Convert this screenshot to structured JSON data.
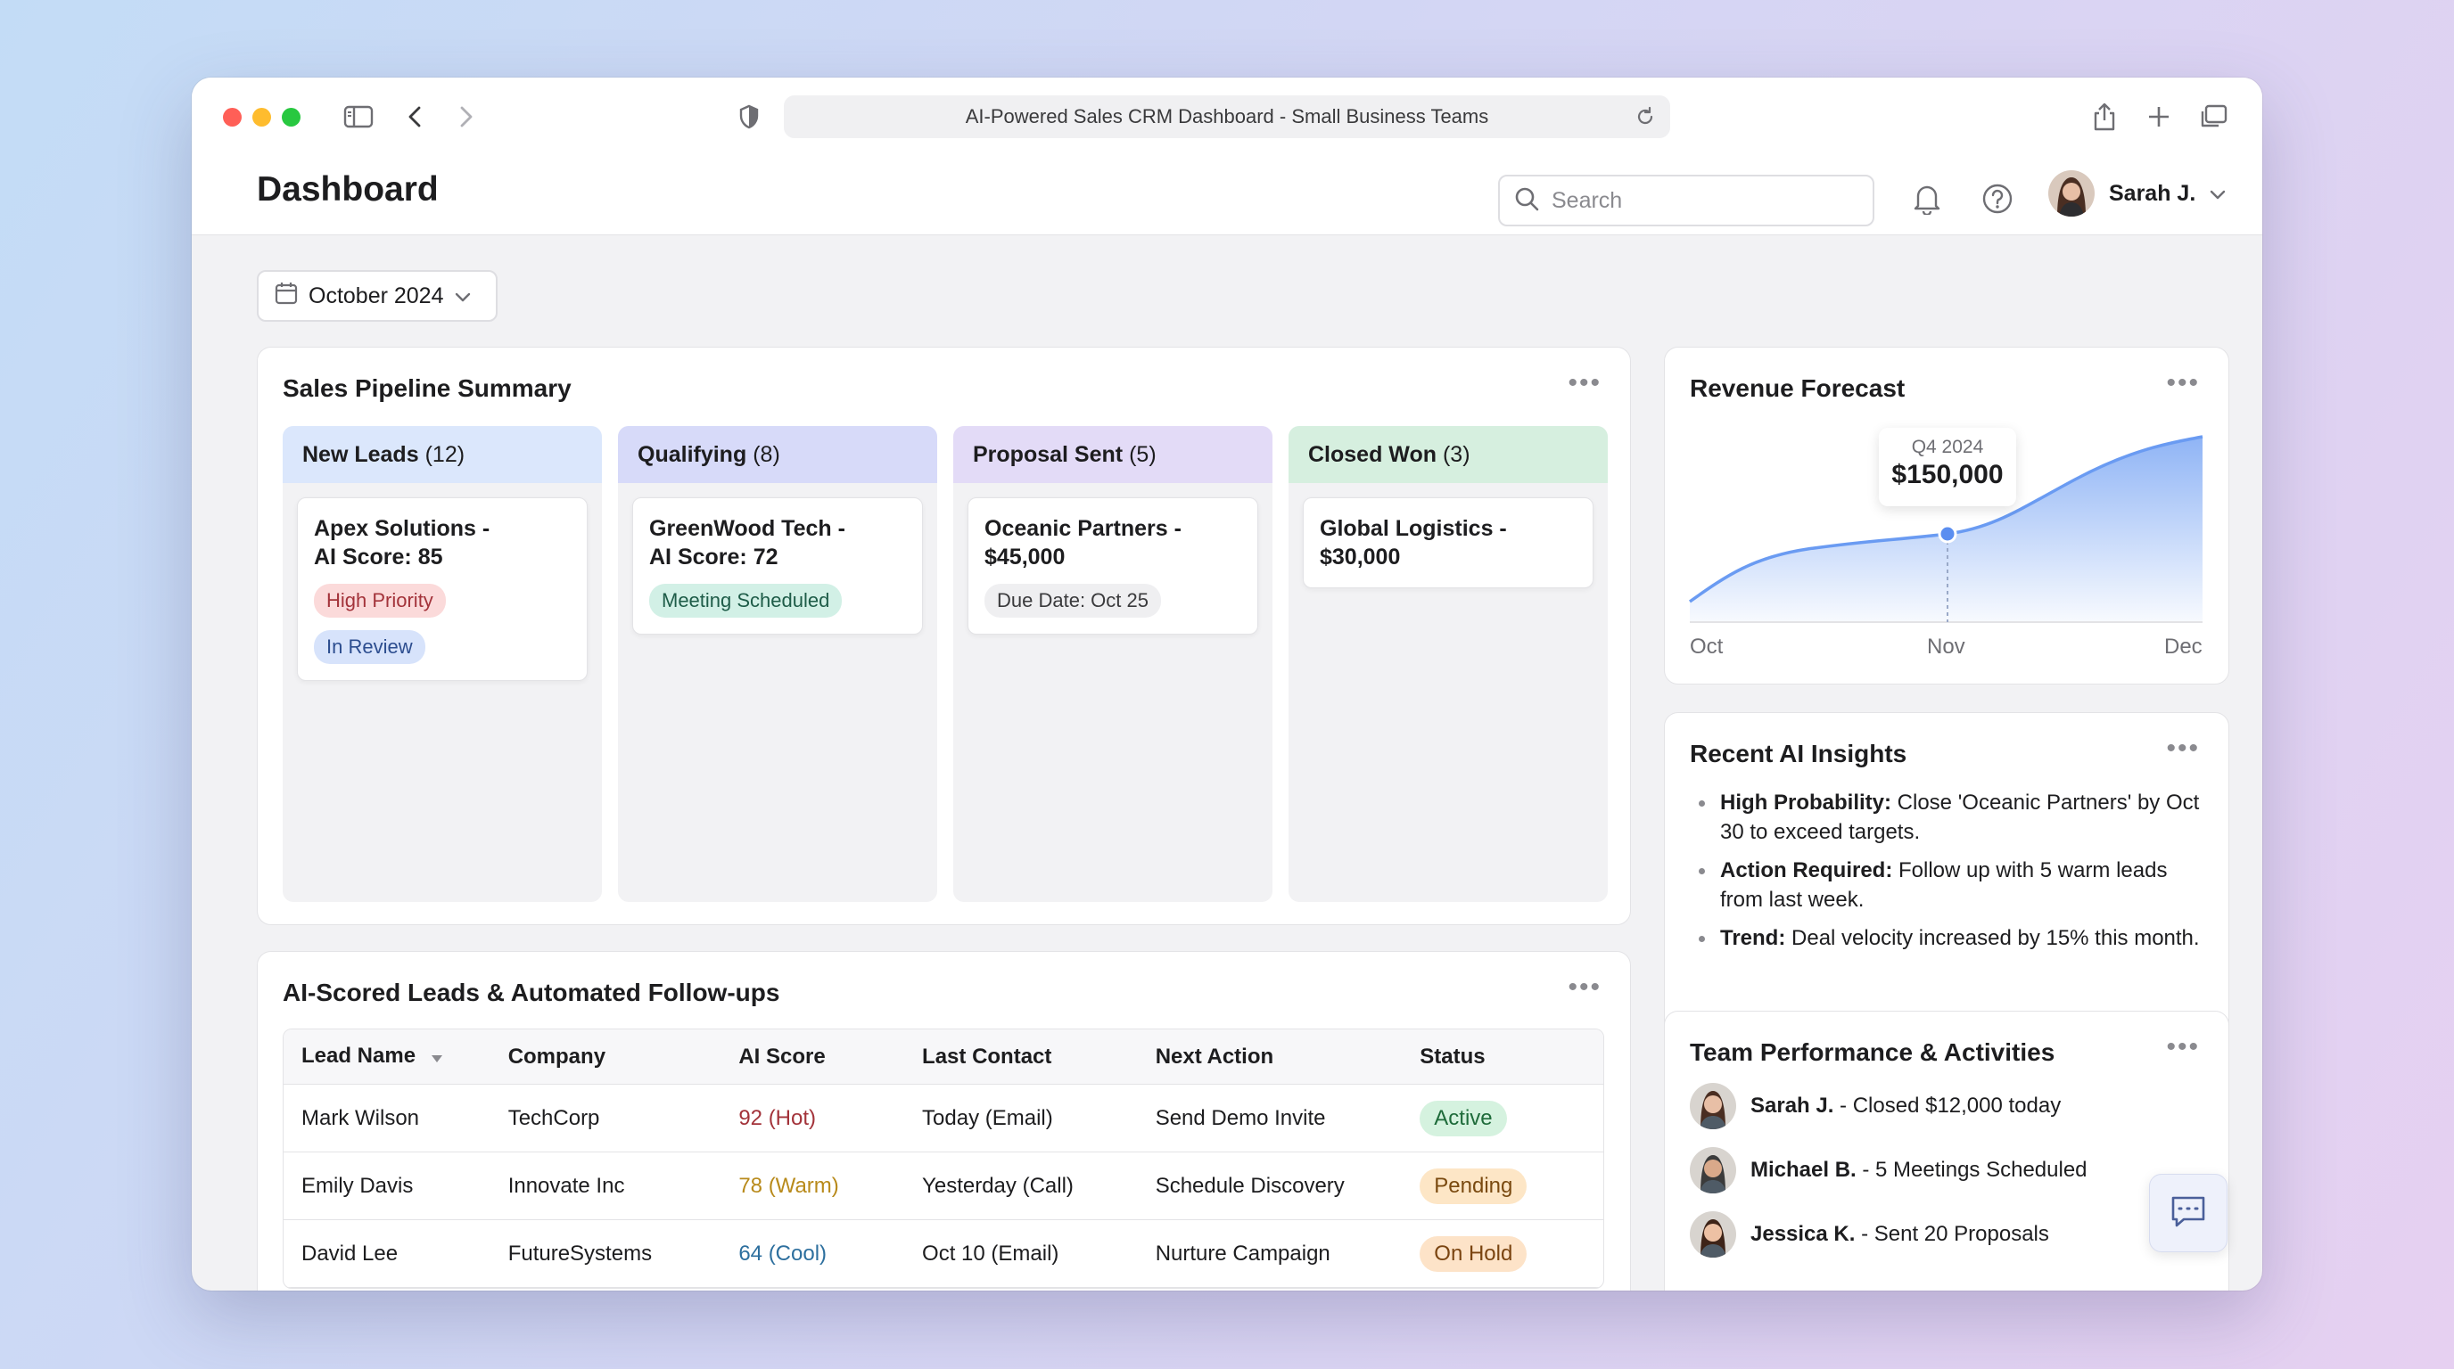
{
  "browser": {
    "url_title": "AI-Powered Sales CRM Dashboard - Small Business Teams"
  },
  "header": {
    "title": "Dashboard",
    "search_placeholder": "Search",
    "user_name": "Sarah J."
  },
  "filters": {
    "month": "October 2024"
  },
  "pipeline": {
    "title": "Sales Pipeline Summary",
    "columns": [
      {
        "name": "New Leads",
        "count": "(12)",
        "color": "#dbe7fc",
        "deal_line1": "Apex Solutions -",
        "deal_line2": "AI Score: 85",
        "tags": [
          "High Priority",
          "In Review"
        ]
      },
      {
        "name": "Qualifying",
        "count": "(8)",
        "color": "#d7daf9",
        "deal_line1": "GreenWood Tech -",
        "deal_line2": "AI Score: 72",
        "tags": [
          "Meeting Scheduled"
        ]
      },
      {
        "name": "Proposal Sent",
        "count": "(5)",
        "color": "#e3dbf7",
        "deal_line1": "Oceanic Partners -",
        "deal_line2": "$45,000",
        "tags": [
          "Due Date: Oct 25"
        ]
      },
      {
        "name": "Closed Won",
        "count": "(3)",
        "color": "#d6efdf",
        "deal_line1": "Global Logistics -",
        "deal_line2": "$30,000",
        "tags": []
      }
    ]
  },
  "forecast": {
    "title": "Revenue Forecast",
    "tooltip_label": "Q4 2024",
    "tooltip_value": "$150,000",
    "axis": [
      "Oct",
      "Nov",
      "Dec"
    ],
    "accent": "#5b8ef0"
  },
  "insights": {
    "title": "Recent AI Insights",
    "items": [
      {
        "bold": "High Probability:",
        "text": " Close 'Oceanic Partners' by Oct 30 to exceed targets."
      },
      {
        "bold": "Action Required:",
        "text": " Follow up with 5 warm leads from last week."
      },
      {
        "bold": "Trend:",
        "text": " Deal velocity increased by 15% this month."
      }
    ]
  },
  "leads": {
    "title": "AI-Scored Leads & Automated Follow-ups",
    "headers": [
      "Lead Name",
      "Company",
      "AI Score",
      "Last Contact",
      "Next Action",
      "Status"
    ],
    "rows": [
      {
        "name": "Mark Wilson",
        "company": "TechCorp",
        "score": "92 (Hot)",
        "score_color": "#a3333a",
        "last_contact": "Today (Email)",
        "next_action": "Send Demo Invite",
        "status": "Active",
        "status_bg": "#d5f2df",
        "status_color": "#1e6b3a"
      },
      {
        "name": "Emily Davis",
        "company": "Innovate Inc",
        "score": "78 (Warm)",
        "score_color": "#b88a1b",
        "last_contact": "Yesterday (Call)",
        "next_action": "Schedule Discovery",
        "status": "Pending",
        "status_bg": "#fde6c6",
        "status_color": "#7a4a10"
      },
      {
        "name": "David Lee",
        "company": "FutureSystems",
        "score": "64 (Cool)",
        "score_color": "#2d6f9e",
        "last_contact": "Oct 10 (Email)",
        "next_action": "Nurture Campaign",
        "status": "On Hold",
        "status_bg": "#fde3c8",
        "status_color": "#7a4410"
      }
    ]
  },
  "team": {
    "title": "Team Performance & Activities",
    "items": [
      {
        "name": "Sarah J.",
        "text": " - Closed $12,000 today"
      },
      {
        "name": "Michael B.",
        "text": " - 5 Meetings Scheduled"
      },
      {
        "name": "Jessica K.",
        "text": " - Sent 20 Proposals"
      }
    ]
  },
  "tag_colors": {
    "High Priority": {
      "bg": "#fbdada",
      "fg": "#a3333a"
    },
    "In Review": {
      "bg": "#d7e3fb",
      "fg": "#2c4d8f"
    },
    "Meeting Scheduled": {
      "bg": "#d2f0e6",
      "fg": "#1e5c48"
    },
    "Due Date: Oct 25": {
      "bg": "#efeff1",
      "fg": "#3a3a3c"
    }
  }
}
